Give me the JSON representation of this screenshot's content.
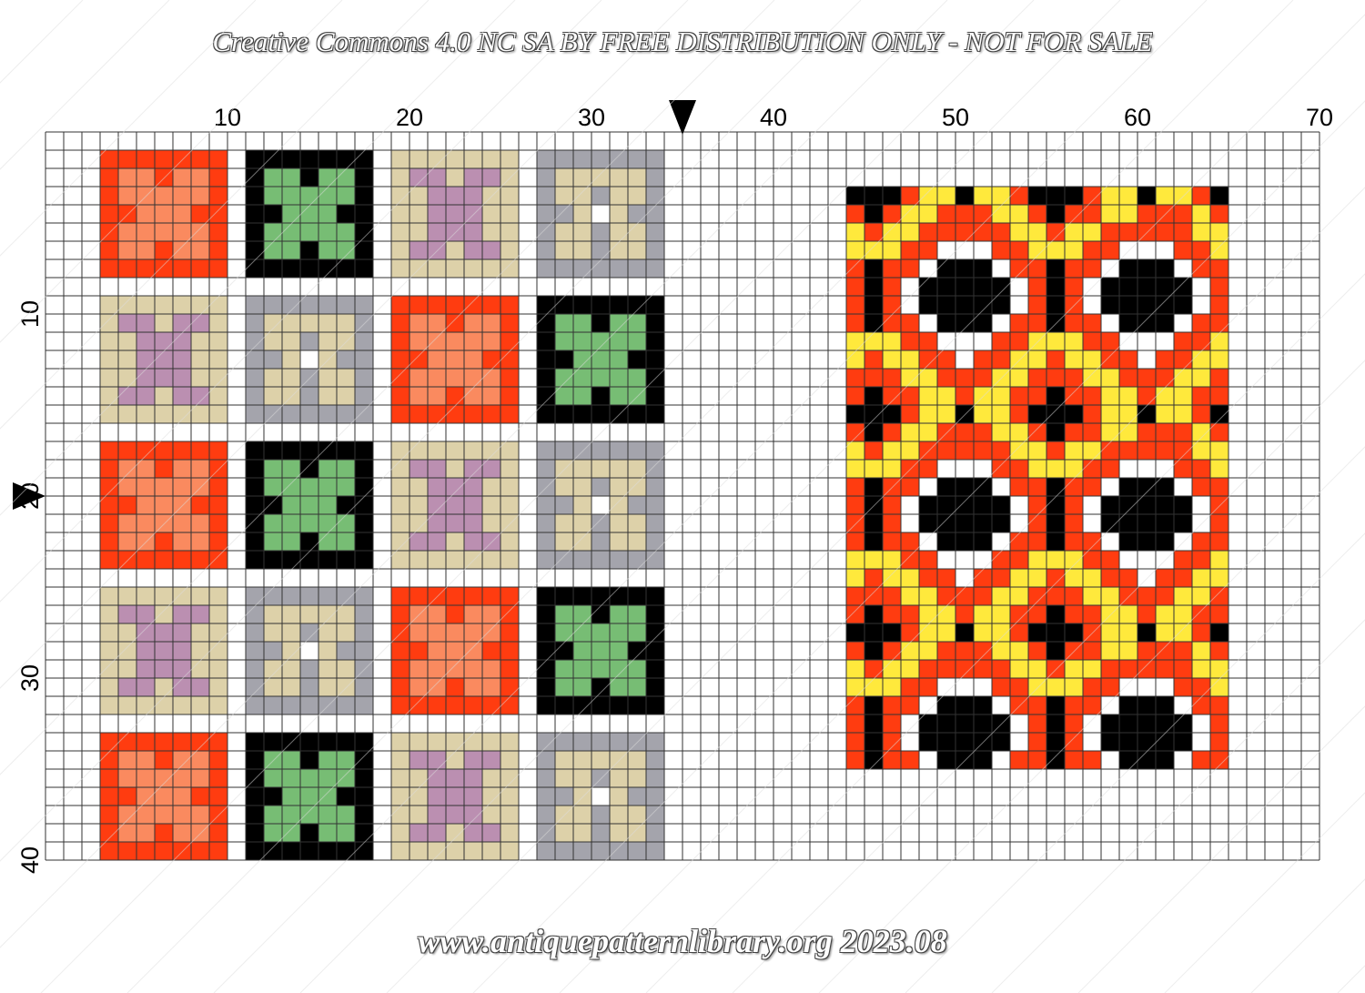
{
  "header": {
    "text": "Creative Commons 4.0 NC SA BY FREE DISTRIBUTION ONLY - NOT FOR SALE"
  },
  "footer": {
    "text": "www.antiquepatternlibrary.org  2023.08"
  },
  "chart_data": {
    "type": "cross-stitch-chart",
    "grid": {
      "columns": 70,
      "rows": 40
    },
    "column_labels": [
      "10",
      "20",
      "30",
      "40",
      "50",
      "60",
      "70"
    ],
    "row_labels": [
      "10",
      "20",
      "30",
      "40"
    ],
    "center_markers": {
      "column": 35,
      "row": 20
    },
    "colors": {
      "R": "#ff3c10",
      "S": "#fa8a5f",
      "K": "#000000",
      "G": "#77bd74",
      "E": "#ddd1a9",
      "P": "#bb8fb1",
      "A": "#a4a4ac",
      "Y": "#ffe93c",
      "W": "#ffffff"
    },
    "motifs": {
      "A": [
        "RRRRRRR",
        "RSSRSSR",
        "RSSSSSR",
        "RRSSSRR",
        "RSSSSSR",
        "RSSRSSR",
        "RRRRRRR"
      ],
      "B": [
        "KKKKKKK",
        "KGGKGGK",
        "KGGGGGK",
        "KKGGGKK",
        "KGGGGGK",
        "KGGKGGK",
        "KKKKKKK"
      ],
      "C": [
        "EEEEEEE",
        "EPPEPPE",
        "EEPPPEE",
        "EEPPPEE",
        "EEPPPEE",
        "EPPEPPE",
        "EEEEEEE"
      ],
      "D": [
        "AAAAAAA",
        "AEEEEEA",
        "AEEAEEA",
        "AAEWEAA",
        "AEEAEEA",
        "AEEAEEA",
        "AAAAAAA"
      ]
    },
    "block_rows": [
      [
        "A",
        "B",
        "C",
        "D"
      ],
      [
        "C",
        "D",
        "A",
        "B"
      ],
      [
        "A",
        "B",
        "C",
        "D"
      ],
      [
        "C",
        "D",
        "A",
        "B"
      ],
      [
        "A",
        "B",
        "C",
        "D"
      ]
    ],
    "border_repeat": [
      "KKKRYYKYYRKKKRYYKYYRK",
      "RKRYYRRRYYRKRRYYRRRYR",
      "YRYYRRRRRYYRYYRRRRRYY",
      "YYYRRWWWRRYYYRRWWWRRY",
      "RKRRWKKKWRRKRRWKKKWRR",
      "RKRWKKKKKWRKRWKKKKKWR",
      "RKRWKKKKKWRKRWKKKKKWR",
      "RKRRWKKKWRRKRRWKKKWRR",
      "YYYRRWWWRRYYYRRWWWRRY",
      "YRYYRRWRRYYRYYRRWRRYY",
      "RRRYYRRRYYRRRYYRRRYYR",
      "RKRRYYRYYRRKRRYYRYYRR"
    ],
    "border_rows_total": 32
  }
}
